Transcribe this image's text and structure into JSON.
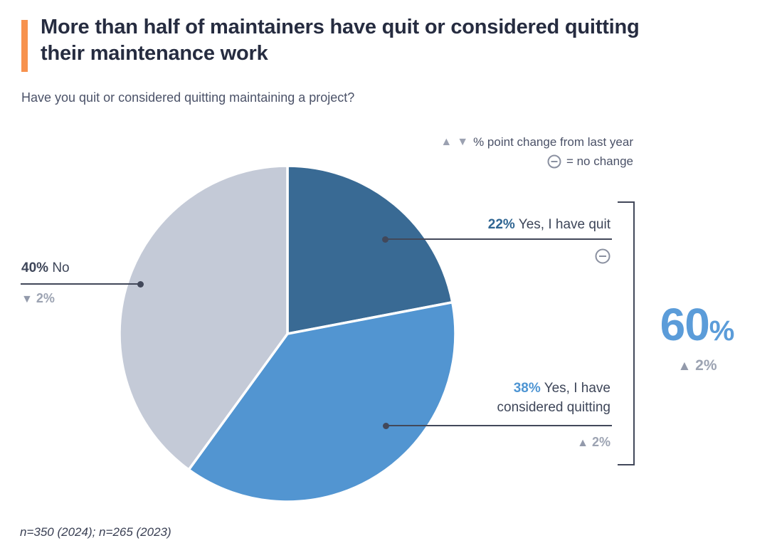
{
  "header": {
    "title": "More than half of maintainers have quit or considered quitting their maintenance work",
    "subtitle": "Have you quit or considered quitting maintaining a project?",
    "accent_color": "#F7924E"
  },
  "legend": {
    "up_symbol": "▲",
    "down_symbol": "▼",
    "change_label": "% point change from last year",
    "no_change_label": "= no change"
  },
  "chart_data": {
    "type": "pie",
    "title": "Have you quit or considered quitting maintaining a project?",
    "start_angle_deg": 0,
    "clockwise": true,
    "slices": [
      {
        "label": "Yes, I have quit",
        "value": 22,
        "pct_label": "22%",
        "color": "#396A94",
        "change_from_last_year": "no change"
      },
      {
        "label": "Yes, I have considered quitting",
        "value": 38,
        "pct_label": "38%",
        "color": "#5295D1",
        "change_from_last_year": "+2"
      },
      {
        "label": "No",
        "value": 40,
        "pct_label": "40%",
        "color": "#C4CAD7",
        "change_from_last_year": "-2"
      }
    ],
    "total_callout": {
      "label": "quit or considered quitting",
      "value": 60,
      "pct_label": "60%",
      "change_from_last_year": "+2"
    }
  },
  "callouts": {
    "quit": {
      "pct": "22%",
      "text": "Yes, I have quit"
    },
    "no": {
      "pct": "40%",
      "text": "No",
      "change_symbol": "▼",
      "change_text": "2%"
    },
    "considered": {
      "pct": "38%",
      "text": "Yes, I have considered quitting",
      "change_symbol": "▲",
      "change_text": "2%"
    },
    "total": {
      "pct_number": "60",
      "pct_sign": "%",
      "change_symbol": "▲",
      "change_text": "2%"
    }
  },
  "footer": {
    "note": "n=350 (2024); n=265 (2023)"
  },
  "colors": {
    "accent_orange": "#F7924E",
    "title_navy": "#262C40",
    "dark_blue_slice": "#396A94",
    "mid_blue_slice": "#5295D1",
    "light_gray_slice": "#C4CAD7",
    "total_blue": "#5B9CD9",
    "change_gray": "#9CA3B2",
    "line_dark": "#42485A"
  }
}
